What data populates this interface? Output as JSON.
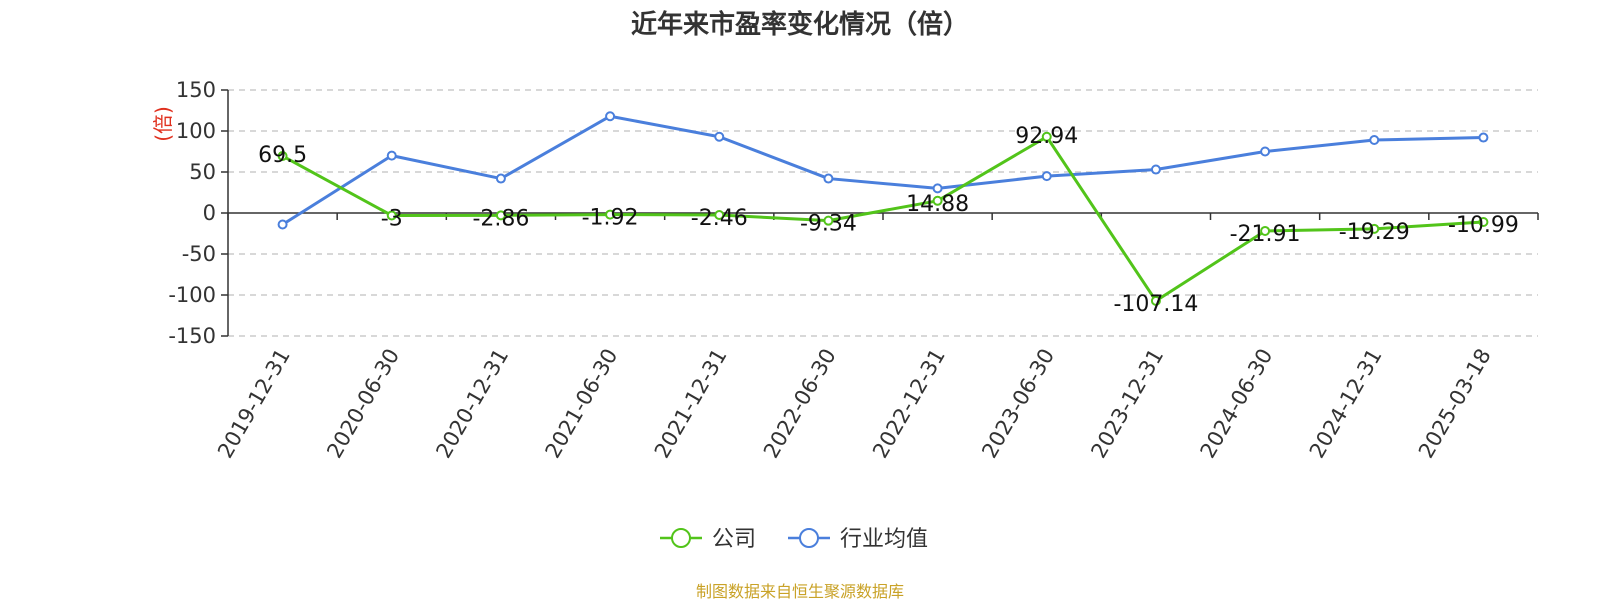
{
  "chart_data": {
    "type": "line",
    "title": "近年来市盈率变化情况（倍）",
    "ylabel": "(倍)",
    "ylim": [
      -150,
      150
    ],
    "yticks": [
      150,
      100,
      50,
      0,
      -50,
      -100,
      -150
    ],
    "categories": [
      "2019-12-31",
      "2020-06-30",
      "2020-12-31",
      "2021-06-30",
      "2021-12-31",
      "2022-06-30",
      "2022-12-31",
      "2023-06-30",
      "2023-12-31",
      "2024-06-30",
      "2024-12-31",
      "2025-03-18"
    ],
    "series": [
      {
        "name": "公司",
        "color": "#52c41a",
        "values": [
          69.5,
          -3,
          -2.86,
          -1.92,
          -2.46,
          -9.34,
          14.88,
          92.94,
          -107.14,
          -21.91,
          -19.29,
          -10.99
        ],
        "labels": [
          "69.5",
          "-3",
          "-2.86",
          "-1.92",
          "-2.46",
          "-9.34",
          "14.88",
          "92.94",
          "-107.14",
          "-21.91",
          "-19.29",
          "-10.99"
        ]
      },
      {
        "name": "行业均值",
        "color": "#4a7fdc",
        "values": [
          -14,
          70,
          42,
          118,
          93,
          42,
          30,
          45,
          53,
          75,
          89,
          92
        ]
      }
    ],
    "grid": true,
    "legend": "bottom-center"
  },
  "source": "制图数据来自恒生聚源数据库"
}
